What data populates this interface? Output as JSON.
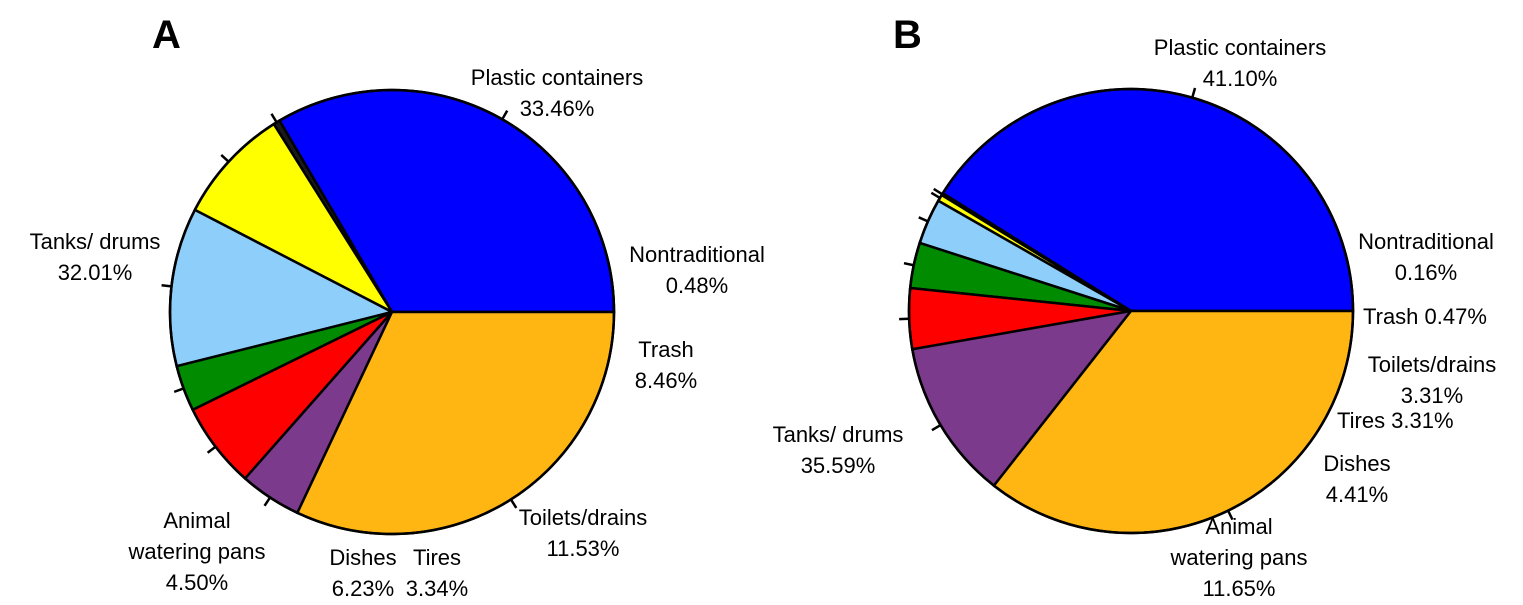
{
  "chart_data": [
    {
      "type": "pie",
      "panel_label": "A",
      "categories": [
        "Plastic containers",
        "Nontraditional",
        "Trash",
        "Toilets/drains",
        "Tires",
        "Dishes",
        "Animal watering pans",
        "Tanks/ drums"
      ],
      "values": [
        33.46,
        0.48,
        8.46,
        11.53,
        3.34,
        6.23,
        4.5,
        32.01
      ],
      "colors": [
        "#0000FF",
        "#1a1a1a",
        "#FFFF00",
        "#8ECEFA",
        "#008B00",
        "#FF0000",
        "#7B3A8C",
        "#FFB612"
      ],
      "labels": [
        [
          "Plastic containers",
          "33.46%"
        ],
        [
          "Nontraditional",
          "0.48%"
        ],
        [
          "Trash",
          "8.46%"
        ],
        [
          "Toilets/drains",
          "11.53%"
        ],
        [
          "Tires",
          "3.34%"
        ],
        [
          "Dishes",
          "6.23%"
        ],
        [
          "Animal",
          "watering pans",
          "4.50%"
        ],
        [
          "Tanks/ drums",
          "32.01%"
        ]
      ],
      "start_angle": "3 o'clock",
      "direction": "counterclockwise"
    },
    {
      "type": "pie",
      "panel_label": "B",
      "categories": [
        "Plastic containers",
        "Nontraditional",
        "Trash",
        "Toilets/drains",
        "Tires",
        "Dishes",
        "Animal watering pans",
        "Tanks/ drums"
      ],
      "values": [
        41.1,
        0.16,
        0.47,
        3.31,
        3.31,
        4.41,
        11.65,
        35.59
      ],
      "colors": [
        "#0000FF",
        "#1a1a1a",
        "#FFFF00",
        "#8ECEFA",
        "#008B00",
        "#FF0000",
        "#7B3A8C",
        "#FFB612"
      ],
      "labels": [
        [
          "Plastic containers",
          "41.10%"
        ],
        [
          "Nontraditional",
          "0.16%"
        ],
        [
          "Trash 0.47%"
        ],
        [
          "Toilets/drains",
          "3.31%"
        ],
        [
          "Tires 3.31%"
        ],
        [
          "Dishes",
          "4.41%"
        ],
        [
          "Animal",
          "watering pans",
          "11.65%"
        ],
        [
          "Tanks/ drums",
          "35.59%"
        ]
      ],
      "start_angle": "3 o'clock",
      "direction": "counterclockwise"
    }
  ]
}
